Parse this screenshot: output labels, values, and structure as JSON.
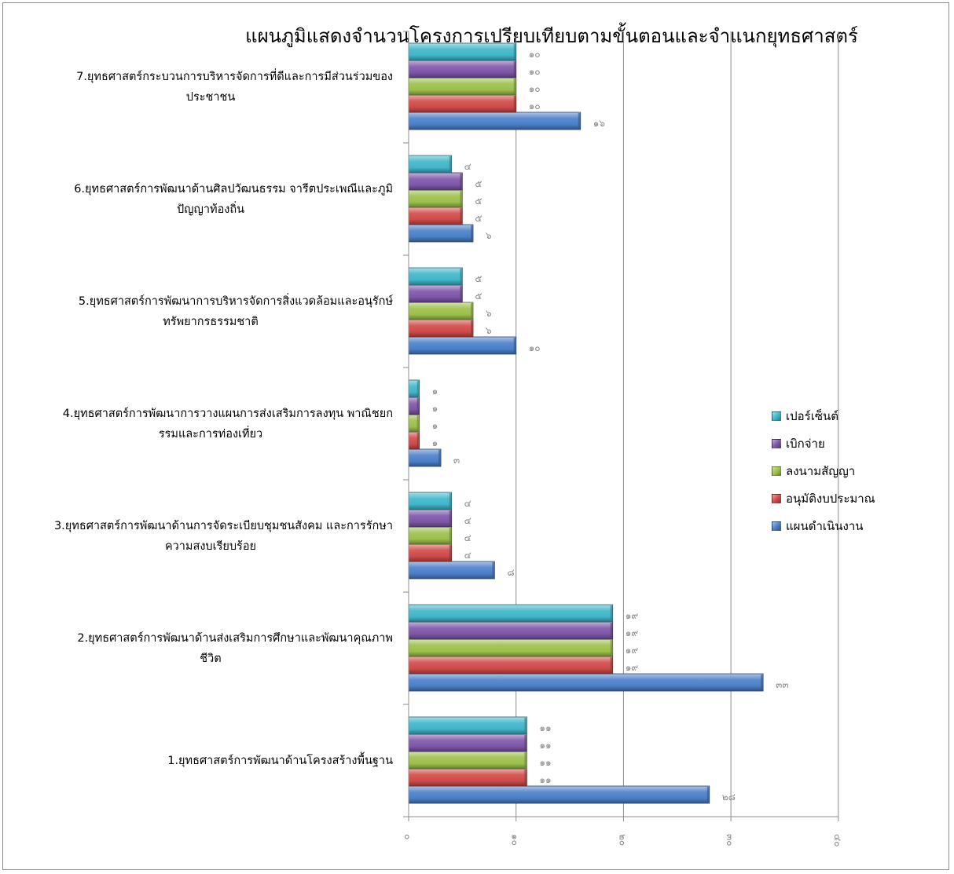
{
  "chart_data": {
    "type": "bar",
    "orientation": "horizontal",
    "title": "แผนภูมิแสดงจำนวนโครงการเปรียบเทียบตามขั้นตอนและจำแนกยุทธศาสตร์",
    "categories": [
      "1.ยุทธศาสตร์การพัฒนาด้านโครงสร้างพื้นฐาน",
      "2.ยุทธศาสตร์การพัฒนาด้านส่งเสริมการศึกษาและพัฒนาคุณภาพ ชีวิต",
      "3.ยุทธศาสตร์การพัฒนาด้านการจัดระเบียบชุมชนสังคม และการรักษา ความสงบเรียบร้อย",
      "4.ยุทธศาสตร์การพัฒนาการวางแผนการส่งเสริมการลงทุน พาณิชยก รรมและการท่องเที่ยว",
      "5.ยุทธศาสตร์การพัฒนาการบริหารจัดการสิ่งแวดล้อมและอนุรักษ์ ทรัพยากรธรรมชาติ",
      "6.ยุทธศาสตร์การพัฒนาด้านศิลปวัฒนธรรม จารีตประเพณีและภูมิ ปัญญาท้องถิ่น",
      "7.ยุทธศาสตร์กระบวนการบริหารจัดการที่ดีและการมีส่วนร่วมของ ประชาชน"
    ],
    "category_lines": [
      [
        "1.ยุทธศาสตร์การพัฒนาด้านโครงสร้างพื้นฐาน"
      ],
      [
        "2.ยุทธศาสตร์การพัฒนาด้านส่งเสริมการศึกษาและพัฒนาคุณภาพ",
        "ชีวิต"
      ],
      [
        "3.ยุทธศาสตร์การพัฒนาด้านการจัดระเบียบชุมชนสังคม และการรักษา",
        "ความสงบเรียบร้อย"
      ],
      [
        "4.ยุทธศาสตร์การพัฒนาการวางแผนการส่งเสริมการลงทุน พาณิชยก",
        "รรมและการท่องเที่ยว"
      ],
      [
        "5.ยุทธศาสตร์การพัฒนาการบริหารจัดการสิ่งแวดล้อมและอนุรักษ์",
        "ทรัพยากรธรรมชาติ"
      ],
      [
        "6.ยุทธศาสตร์การพัฒนาด้านศิลปวัฒนธรรม จารีตประเพณีและภูมิ",
        "ปัญญาท้องถิ่น"
      ],
      [
        "7.ยุทธศาสตร์กระบวนการบริหารจัดการที่ดีและการมีส่วนร่วมของ",
        "ประชาชน"
      ]
    ],
    "series": [
      {
        "name": "แผนดำเนินงาน",
        "color": "#4a7fc8",
        "values": [
          28,
          33,
          8,
          3,
          10,
          6,
          16
        ],
        "labels": [
          "๒๘",
          "๓๓",
          "๘",
          "๓",
          "๑๐",
          "๖",
          "๑๖"
        ]
      },
      {
        "name": "อนุมัติงบประมาณ",
        "color": "#cf4a48",
        "values": [
          11,
          19,
          4,
          1,
          6,
          5,
          10
        ],
        "labels": [
          "๑๑",
          "๑๙",
          "๔",
          "๑",
          "๖",
          "๕",
          "๑๐"
        ]
      },
      {
        "name": "ลงนามสัญญา",
        "color": "#9cc04a",
        "values": [
          11,
          19,
          4,
          1,
          6,
          5,
          10
        ],
        "labels": [
          "๑๑",
          "๑๙",
          "๔",
          "๑",
          "๖",
          "๕",
          "๑๐"
        ]
      },
      {
        "name": "เบิกจ่าย",
        "color": "#7d56a8",
        "values": [
          11,
          19,
          4,
          1,
          5,
          5,
          10
        ],
        "labels": [
          "๑๑",
          "๑๙",
          "๔",
          "๑",
          "๕",
          "๕",
          "๑๐"
        ]
      },
      {
        "name": "เปอร์เซ็นต์",
        "color": "#3fb6c9",
        "values": [
          11,
          19,
          4,
          1,
          5,
          4,
          10
        ],
        "labels": [
          "๑๑",
          "๑๙",
          "๔",
          "๑",
          "๕",
          "๔",
          "๑๐"
        ]
      }
    ],
    "xlim": [
      0,
      40
    ],
    "x_ticks": [
      0,
      10,
      20,
      30,
      40
    ],
    "x_tick_labels": [
      "๐",
      "๑๐",
      "๒๐",
      "๓๐",
      "๔๐"
    ],
    "grid": true,
    "legend_position": "right",
    "legend_order": [
      "เปอร์เซ็นต์",
      "เบิกจ่าย",
      "ลงนามสัญญา",
      "อนุมัติงบประมาณ",
      "แผนดำเนินงาน"
    ]
  }
}
